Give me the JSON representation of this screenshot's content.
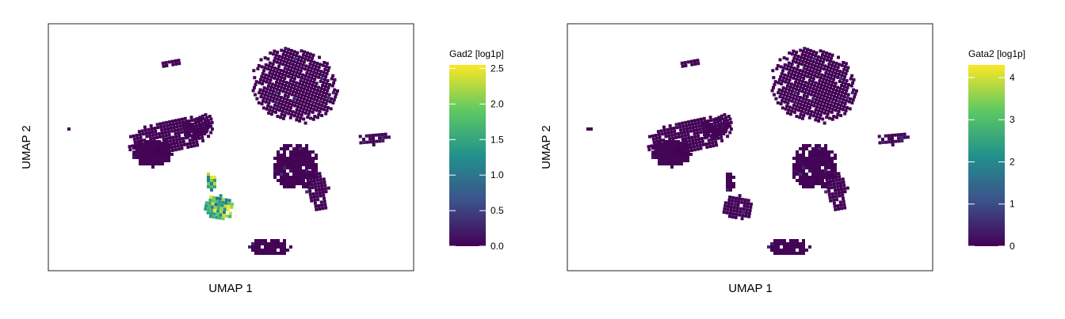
{
  "chart_data": [
    {
      "type": "heatmap",
      "subtype": "umap-hexbin",
      "xlabel": "UMAP 1",
      "ylabel": "UMAP 2",
      "colorbar": {
        "title": "Gad2 [log1p]",
        "range": [
          0,
          2.55
        ],
        "ticks": [
          0.0,
          0.5,
          1.0,
          1.5,
          2.0,
          2.5
        ],
        "tick_labels": [
          "0.0",
          "0.5",
          "1.0",
          "1.5",
          "2.0",
          "2.5"
        ]
      },
      "colormap": [
        "#440154",
        "#3b528b",
        "#21918c",
        "#5ec962",
        "#fde725"
      ],
      "high_expression_cluster": "lower-left"
    },
    {
      "type": "heatmap",
      "subtype": "umap-hexbin",
      "xlabel": "UMAP 1",
      "ylabel": "UMAP 2",
      "colorbar": {
        "title": "Gata2 [log1p]",
        "range": [
          0,
          4.3
        ],
        "ticks": [
          0,
          1,
          2,
          3,
          4
        ],
        "tick_labels": [
          "0",
          "1",
          "2",
          "3",
          "4"
        ]
      },
      "colormap": [
        "#440154",
        "#3b528b",
        "#21918c",
        "#5ec962",
        "#fde725"
      ],
      "high_expression_cluster": "none"
    }
  ]
}
